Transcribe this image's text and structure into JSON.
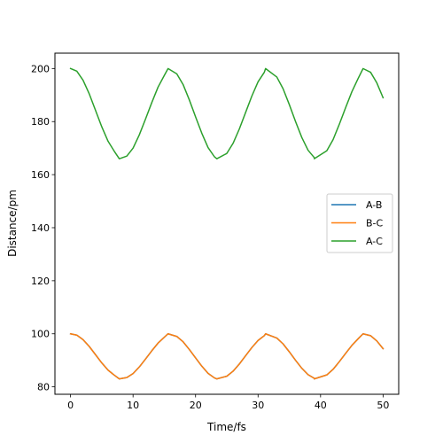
{
  "chart_data": {
    "type": "line",
    "title": "",
    "xlabel": "Time/fs",
    "ylabel": "Distance/pm",
    "xlim": [
      -2.5,
      52.5
    ],
    "ylim": [
      77.2,
      205.8
    ],
    "xticks": [
      0,
      10,
      20,
      30,
      40,
      50
    ],
    "yticks": [
      80,
      100,
      120,
      140,
      160,
      180,
      200
    ],
    "grid": false,
    "legend_position": "center-right",
    "series": [
      {
        "name": "A-B",
        "color": "#1f77b4",
        "x": [
          0,
          1,
          2,
          3,
          4,
          5,
          6,
          7,
          7.8,
          9,
          10,
          11,
          12,
          13,
          14,
          15,
          15.6,
          17,
          18,
          19,
          20,
          21,
          22,
          23,
          23.4,
          25,
          26,
          27,
          28,
          29,
          30,
          31,
          31.2,
          33,
          34,
          35,
          36,
          37,
          38,
          39,
          39.0,
          41,
          42,
          43,
          44,
          45,
          46,
          46.8,
          48,
          49,
          50
        ],
        "y": [
          100.0,
          99.5,
          97.8,
          95.2,
          92.1,
          89.0,
          86.3,
          84.4,
          83.0,
          83.5,
          85.0,
          87.5,
          90.5,
          93.6,
          96.5,
          98.7,
          100.0,
          99.0,
          97.0,
          94.1,
          90.9,
          87.8,
          85.1,
          83.4,
          83.0,
          84.0,
          85.9,
          88.6,
          91.7,
          94.8,
          97.5,
          99.3,
          100.0,
          98.4,
          96.2,
          93.2,
          90.0,
          87.0,
          84.6,
          83.2,
          83.0,
          84.5,
          86.6,
          89.5,
          92.6,
          95.6,
          98.1,
          100.0,
          99.3,
          97.3,
          94.4
        ]
      },
      {
        "name": "B-C",
        "color": "#ff7f0e",
        "x": [
          0,
          1,
          2,
          3,
          4,
          5,
          6,
          7,
          7.8,
          9,
          10,
          11,
          12,
          13,
          14,
          15,
          15.6,
          17,
          18,
          19,
          20,
          21,
          22,
          23,
          23.4,
          25,
          26,
          27,
          28,
          29,
          30,
          31,
          31.2,
          33,
          34,
          35,
          36,
          37,
          38,
          39,
          39.0,
          41,
          42,
          43,
          44,
          45,
          46,
          46.8,
          48,
          49,
          50
        ],
        "y": [
          100.0,
          99.5,
          97.8,
          95.2,
          92.1,
          89.0,
          86.3,
          84.4,
          83.0,
          83.5,
          85.0,
          87.5,
          90.5,
          93.6,
          96.5,
          98.7,
          100.0,
          99.0,
          97.0,
          94.1,
          90.9,
          87.8,
          85.1,
          83.4,
          83.0,
          84.0,
          85.9,
          88.6,
          91.7,
          94.8,
          97.5,
          99.3,
          100.0,
          98.4,
          96.2,
          93.2,
          90.0,
          87.0,
          84.6,
          83.2,
          83.0,
          84.5,
          86.6,
          89.5,
          92.6,
          95.6,
          98.1,
          100.0,
          99.3,
          97.3,
          94.4
        ]
      },
      {
        "name": "A-C",
        "color": "#2ca02c",
        "x": [
          0,
          1,
          2,
          3,
          4,
          5,
          6,
          7,
          7.8,
          9,
          10,
          11,
          12,
          13,
          14,
          15,
          15.6,
          17,
          18,
          19,
          20,
          21,
          22,
          23,
          23.4,
          25,
          26,
          27,
          28,
          29,
          30,
          31,
          31.2,
          33,
          34,
          35,
          36,
          37,
          38,
          39,
          39.0,
          41,
          42,
          43,
          44,
          45,
          46,
          46.8,
          48,
          49,
          50
        ],
        "y": [
          200.0,
          199.0,
          195.6,
          190.4,
          184.2,
          178.0,
          172.6,
          168.8,
          166.0,
          167.0,
          170.0,
          175.0,
          181.0,
          187.2,
          193.0,
          197.4,
          200.0,
          198.0,
          194.0,
          188.2,
          181.8,
          175.6,
          170.2,
          166.8,
          166.0,
          168.0,
          171.8,
          177.2,
          183.4,
          189.6,
          195.0,
          198.6,
          200.0,
          196.8,
          192.4,
          186.4,
          180.0,
          174.0,
          169.2,
          166.4,
          166.0,
          169.0,
          173.2,
          179.0,
          185.2,
          191.2,
          196.2,
          200.0,
          198.6,
          194.6,
          189.0
        ]
      }
    ]
  }
}
